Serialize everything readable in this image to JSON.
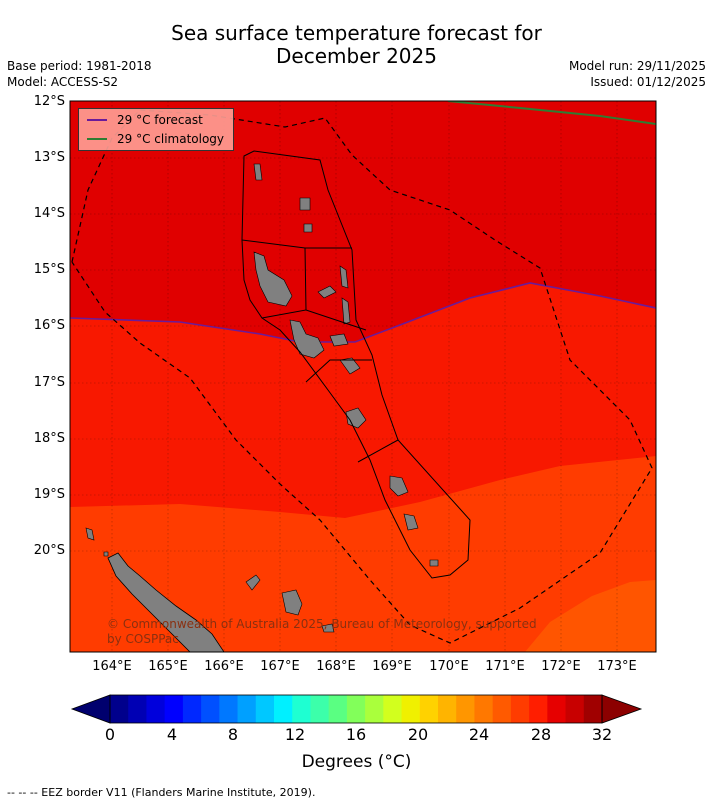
{
  "title": {
    "line1": "Sea surface temperature forecast for",
    "line2": "December 2025"
  },
  "meta": {
    "base_period": "Base period: 1981-2018",
    "model": "Model: ACCESS-S2",
    "model_run": "Model run: 29/11/2025",
    "issued": "Issued: 01/12/2025"
  },
  "map": {
    "lat_labels": [
      "12°S",
      "13°S",
      "14°S",
      "15°S",
      "16°S",
      "17°S",
      "18°S",
      "19°S",
      "20°S"
    ],
    "lon_labels": [
      "164°E",
      "165°E",
      "166°E",
      "167°E",
      "168°E",
      "169°E",
      "170°E",
      "171°E",
      "172°E",
      "173°E"
    ],
    "colors": {
      "band_32": "#e00000",
      "band_30": "#f81800",
      "band_28": "#ff3c00",
      "band_26": "#ff5500",
      "land": "#808080",
      "forecast_line": "#6a1b9a",
      "climatology_line": "#2e7d32"
    }
  },
  "legend": {
    "forecast": "29 °C  forecast",
    "climatology": "29 °C  climatology"
  },
  "copyright": "© Commonwealth of Australia 2025, Bureau of Meteorology, supported by COSPPac",
  "colorbar": {
    "ticks": [
      "0",
      "4",
      "8",
      "12",
      "16",
      "20",
      "24",
      "28",
      "32"
    ],
    "label_main": "Degrees (",
    "label_unit": "°C",
    "label_close": ")",
    "colors": [
      "#00008c",
      "#0000b4",
      "#0000dc",
      "#0000ff",
      "#0028ff",
      "#0050ff",
      "#0078ff",
      "#00a0ff",
      "#00c8ff",
      "#00f0ff",
      "#1effd2",
      "#3cffaa",
      "#5aff82",
      "#82ff5a",
      "#aaff3c",
      "#d2ff1e",
      "#f0f000",
      "#ffd200",
      "#ffb400",
      "#ff9600",
      "#ff7800",
      "#ff5a00",
      "#ff3c00",
      "#ff1e00",
      "#e60000",
      "#c80000",
      "#a00000"
    ],
    "under_color": "#00006e",
    "over_color": "#8c0000"
  },
  "footnote": "--  --  -- EEZ border V11 (Flanders Marine Institute, 2019)."
}
